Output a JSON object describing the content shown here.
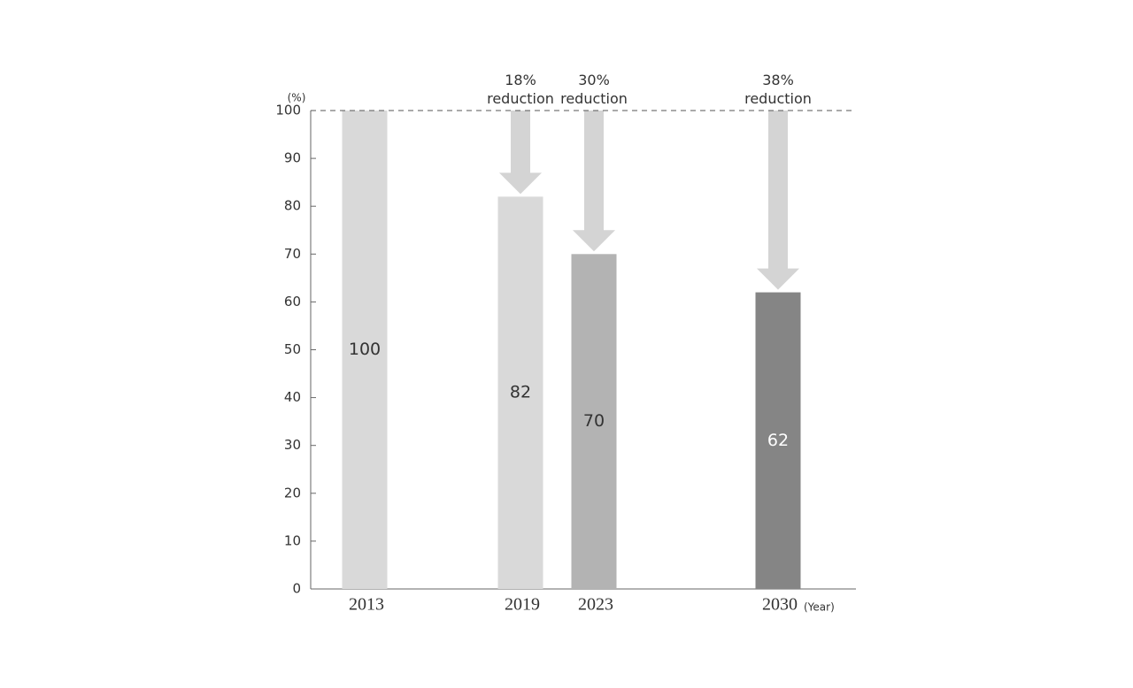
{
  "chart_data": {
    "type": "bar",
    "y_unit_label": "(%)",
    "x_unit_label": "(Year)",
    "categories": [
      "2013",
      "2019",
      "2023",
      "2030"
    ],
    "values": [
      100,
      82,
      70,
      62
    ],
    "colors": [
      "#d9d9d9",
      "#d9d9d9",
      "#b3b3b3",
      "#858585"
    ],
    "annotations": [
      null,
      "18% reduction",
      "30% reduction",
      "38% reduction"
    ],
    "arrow_color": "#d4d4d4",
    "reference_line": 100,
    "ylim": [
      0,
      100
    ],
    "yticks": [
      0,
      10,
      20,
      30,
      40,
      50,
      60,
      70,
      80,
      90,
      100
    ]
  }
}
